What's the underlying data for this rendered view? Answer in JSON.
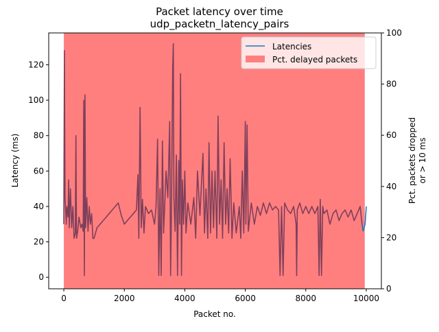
{
  "chart_data": {
    "type": "line",
    "title": "Packet latency over time",
    "subtitle": "udp_packetn_latency_pairs",
    "xlabel": "Packet no.",
    "ylabel": "Latency (ms)",
    "y2label_line1": "Pct. packets dropped",
    "y2label_line2": "or > 10 ms",
    "xlim": [
      -500,
      10500
    ],
    "ylim": [
      -6.5,
      138
    ],
    "y2lim": [
      0,
      100
    ],
    "x_ticks": [
      0,
      2000,
      4000,
      6000,
      8000,
      10000
    ],
    "y_ticks": [
      0,
      20,
      40,
      60,
      80,
      100,
      120
    ],
    "y2_ticks": [
      0,
      20,
      40,
      60,
      80,
      100
    ],
    "legend_position": "top-right",
    "colors": {
      "latency": "#1f77b4",
      "delayed": "#ff7f7f",
      "overlap": "#7f3f5a"
    },
    "series": [
      {
        "name": "Latencies",
        "type": "line",
        "points": [
          [
            0,
            30
          ],
          [
            20,
            128
          ],
          [
            40,
            45
          ],
          [
            60,
            38
          ],
          [
            80,
            30
          ],
          [
            100,
            40
          ],
          [
            140,
            34
          ],
          [
            160,
            55
          ],
          [
            180,
            28
          ],
          [
            220,
            50
          ],
          [
            260,
            28
          ],
          [
            300,
            40
          ],
          [
            340,
            22
          ],
          [
            380,
            25
          ],
          [
            400,
            80
          ],
          [
            420,
            22
          ],
          [
            460,
            26
          ],
          [
            500,
            34
          ],
          [
            560,
            28
          ],
          [
            600,
            30
          ],
          [
            640,
            26
          ],
          [
            660,
            100
          ],
          [
            680,
            1
          ],
          [
            700,
            103
          ],
          [
            720,
            28
          ],
          [
            760,
            45
          ],
          [
            800,
            26
          ],
          [
            840,
            40
          ],
          [
            880,
            30
          ],
          [
            920,
            36
          ],
          [
            960,
            22
          ],
          [
            1000,
            22
          ],
          [
            1100,
            28
          ],
          [
            1200,
            30
          ],
          [
            1300,
            32
          ],
          [
            1400,
            34
          ],
          [
            1500,
            36
          ],
          [
            1600,
            38
          ],
          [
            1700,
            40
          ],
          [
            1800,
            42
          ],
          [
            1900,
            35
          ],
          [
            2000,
            30
          ],
          [
            2100,
            32
          ],
          [
            2200,
            34
          ],
          [
            2300,
            36
          ],
          [
            2400,
            38
          ],
          [
            2450,
            58
          ],
          [
            2480,
            22
          ],
          [
            2520,
            96
          ],
          [
            2560,
            28
          ],
          [
            2600,
            44
          ],
          [
            2650,
            25
          ],
          [
            2700,
            40
          ],
          [
            2800,
            36
          ],
          [
            2900,
            38
          ],
          [
            3000,
            30
          ],
          [
            3050,
            40
          ],
          [
            3100,
            78
          ],
          [
            3140,
            1
          ],
          [
            3180,
            50
          ],
          [
            3220,
            1
          ],
          [
            3260,
            77
          ],
          [
            3300,
            25
          ],
          [
            3380,
            60
          ],
          [
            3440,
            45
          ],
          [
            3500,
            88
          ],
          [
            3530,
            1
          ],
          [
            3560,
            40
          ],
          [
            3600,
            120
          ],
          [
            3620,
            132
          ],
          [
            3640,
            45
          ],
          [
            3680,
            26
          ],
          [
            3720,
            69
          ],
          [
            3760,
            1
          ],
          [
            3800,
            66
          ],
          [
            3830,
            30
          ],
          [
            3860,
            115
          ],
          [
            3890,
            1
          ],
          [
            3920,
            55
          ],
          [
            3960,
            30
          ],
          [
            4000,
            60
          ],
          [
            4040,
            25
          ],
          [
            4100,
            42
          ],
          [
            4200,
            30
          ],
          [
            4300,
            45
          ],
          [
            4360,
            22
          ],
          [
            4420,
            60
          ],
          [
            4500,
            35
          ],
          [
            4600,
            70
          ],
          [
            4650,
            25
          ],
          [
            4700,
            50
          ],
          [
            4760,
            22
          ],
          [
            4800,
            76
          ],
          [
            4850,
            25
          ],
          [
            4900,
            60
          ],
          [
            4950,
            28
          ],
          [
            5000,
            60
          ],
          [
            5060,
            22
          ],
          [
            5100,
            91
          ],
          [
            5150,
            30
          ],
          [
            5200,
            55
          ],
          [
            5250,
            22
          ],
          [
            5300,
            76
          ],
          [
            5350,
            30
          ],
          [
            5400,
            50
          ],
          [
            5450,
            25
          ],
          [
            5500,
            67
          ],
          [
            5560,
            22
          ],
          [
            5620,
            42
          ],
          [
            5700,
            25
          ],
          [
            5800,
            40
          ],
          [
            5850,
            22
          ],
          [
            5900,
            60
          ],
          [
            5950,
            25
          ],
          [
            6000,
            88
          ],
          [
            6020,
            30
          ],
          [
            6060,
            86
          ],
          [
            6100,
            26
          ],
          [
            6200,
            42
          ],
          [
            6300,
            30
          ],
          [
            6400,
            40
          ],
          [
            6500,
            35
          ],
          [
            6600,
            42
          ],
          [
            6700,
            36
          ],
          [
            6800,
            42
          ],
          [
            6900,
            38
          ],
          [
            7000,
            40
          ],
          [
            7100,
            38
          ],
          [
            7150,
            1
          ],
          [
            7200,
            40
          ],
          [
            7250,
            1
          ],
          [
            7300,
            42
          ],
          [
            7400,
            38
          ],
          [
            7500,
            36
          ],
          [
            7600,
            40
          ],
          [
            7680,
            30
          ],
          [
            7700,
            1
          ],
          [
            7720,
            38
          ],
          [
            7800,
            42
          ],
          [
            7900,
            36
          ],
          [
            8000,
            40
          ],
          [
            8100,
            36
          ],
          [
            8200,
            40
          ],
          [
            8300,
            36
          ],
          [
            8400,
            40
          ],
          [
            8440,
            1
          ],
          [
            8480,
            44
          ],
          [
            8520,
            1
          ],
          [
            8560,
            40
          ],
          [
            8600,
            36
          ],
          [
            8700,
            38
          ],
          [
            8800,
            30
          ],
          [
            8900,
            36
          ],
          [
            9000,
            38
          ],
          [
            9100,
            32
          ],
          [
            9200,
            36
          ],
          [
            9300,
            38
          ],
          [
            9400,
            34
          ],
          [
            9500,
            38
          ],
          [
            9600,
            32
          ],
          [
            9700,
            36
          ],
          [
            9800,
            40
          ],
          [
            9860,
            30
          ],
          [
            9900,
            26
          ],
          [
            9960,
            30
          ],
          [
            10000,
            40
          ]
        ]
      },
      {
        "name": "Pct. delayed packets",
        "type": "area",
        "x_range": [
          0,
          9950
        ],
        "value_pct": 100
      }
    ]
  }
}
